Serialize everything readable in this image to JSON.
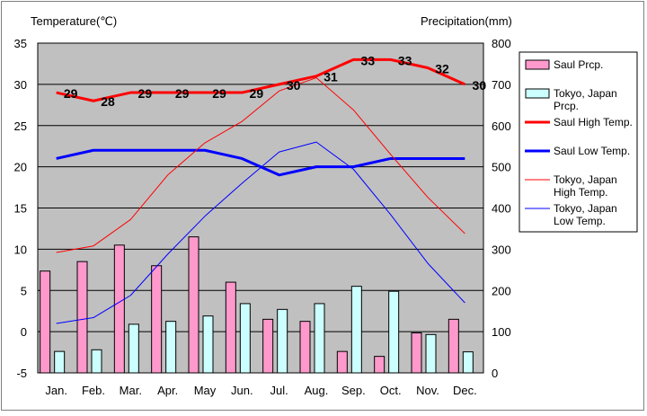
{
  "chart_data": {
    "type": "bar",
    "categories": [
      "Jan.",
      "Feb.",
      "Mar.",
      "Apr.",
      "May",
      "Jun.",
      "Jul.",
      "Aug.",
      "Sep.",
      "Oct.",
      "Nov.",
      "Dec."
    ],
    "axes": {
      "left": {
        "label": "Temperature(℃)",
        "min": -5,
        "max": 35,
        "step": 5,
        "ticks": [
          "-5",
          "0",
          "5",
          "10",
          "15",
          "20",
          "25",
          "30",
          "35"
        ]
      },
      "right": {
        "label": "Precipitation(mm)",
        "min": 0,
        "max": 800,
        "step": 100,
        "ticks": [
          "0",
          "100",
          "200",
          "300",
          "400",
          "500",
          "600",
          "700",
          "800"
        ]
      }
    },
    "series": [
      {
        "name": "Saul Prcp.",
        "type": "bar",
        "axis": "right",
        "color": "#ff99cc",
        "values": [
          247,
          270,
          310,
          260,
          330,
          220,
          130,
          125,
          52,
          40,
          97,
          130
        ]
      },
      {
        "name": "Tokyo, Japan Prcp.",
        "type": "bar",
        "axis": "right",
        "color": "#ccffff",
        "values": [
          52,
          56,
          118,
          125,
          138,
          168,
          154,
          168,
          210,
          198,
          93,
          51
        ]
      },
      {
        "name": "Saul High Temp.",
        "type": "line",
        "axis": "left",
        "color": "#ff0000",
        "width": 3,
        "values": [
          29,
          28,
          29,
          29,
          29,
          29,
          30,
          31,
          33,
          33,
          32,
          30
        ],
        "labels": [
          "29",
          "28",
          "29",
          "29",
          "29",
          "29",
          "30",
          "31",
          "33",
          "33",
          "32",
          "30"
        ]
      },
      {
        "name": "Saul Low Temp.",
        "type": "line",
        "axis": "left",
        "color": "#0000ff",
        "width": 3,
        "values": [
          21,
          22,
          22,
          22,
          22,
          21,
          19,
          20,
          20,
          21,
          21,
          21
        ]
      },
      {
        "name": "Tokyo, Japan High Temp.",
        "type": "line",
        "axis": "left",
        "color": "#ff0000",
        "width": 1,
        "values": [
          9.6,
          10.4,
          13.6,
          19.0,
          22.9,
          25.5,
          29.2,
          30.8,
          26.9,
          21.5,
          16.3,
          11.9
        ]
      },
      {
        "name": "Tokyo, Japan Low Temp.",
        "type": "line",
        "axis": "left",
        "color": "#0000ff",
        "width": 1,
        "values": [
          1.0,
          1.7,
          4.4,
          9.4,
          14.0,
          18.0,
          21.8,
          23.0,
          19.7,
          14.2,
          8.3,
          3.5
        ]
      }
    ],
    "legend": {
      "placement": "right",
      "entries": [
        {
          "lines": [
            "Saul Prcp."
          ],
          "series": 0
        },
        {
          "lines": [
            "Tokyo, Japan",
            "Prcp."
          ],
          "series": 1
        },
        {
          "lines": [
            "Saul High Temp."
          ],
          "series": 2
        },
        {
          "lines": [
            "Saul Low Temp."
          ],
          "series": 3
        },
        {
          "lines": [
            "Tokyo, Japan",
            "High Temp."
          ],
          "series": 4
        },
        {
          "lines": [
            "Tokyo, Japan",
            "Low Temp."
          ],
          "series": 5
        }
      ]
    },
    "plot_background": "#c0c0c0",
    "grid": true
  }
}
